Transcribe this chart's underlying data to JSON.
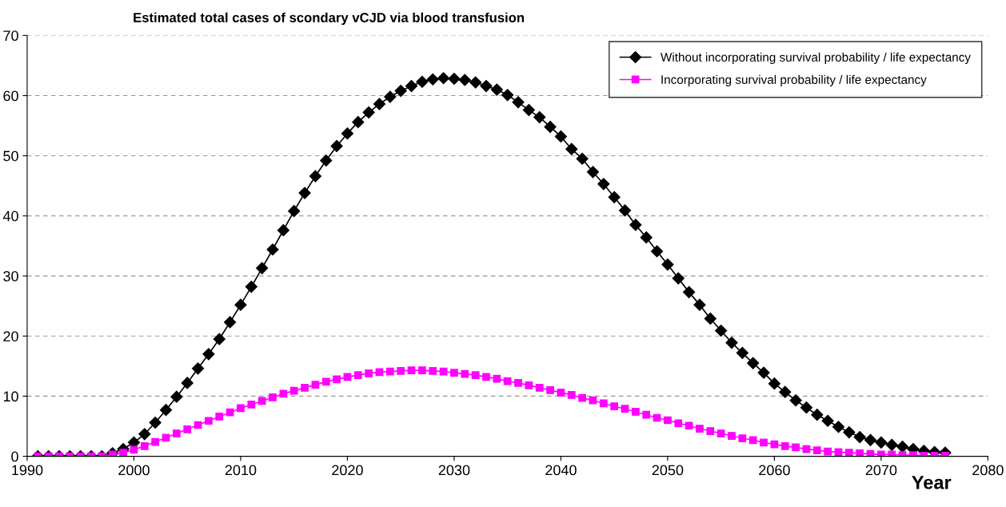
{
  "chart_data": {
    "type": "line",
    "title": "Estimated total cases of scondary vCJD via blood transfusion",
    "xlabel": "Year",
    "x": [
      1991,
      1992,
      1993,
      1994,
      1995,
      1996,
      1997,
      1998,
      1999,
      2000,
      2001,
      2002,
      2003,
      2004,
      2005,
      2006,
      2007,
      2008,
      2009,
      2010,
      2011,
      2012,
      2013,
      2014,
      2015,
      2016,
      2017,
      2018,
      2019,
      2020,
      2021,
      2022,
      2023,
      2024,
      2025,
      2026,
      2027,
      2028,
      2029,
      2030,
      2031,
      2032,
      2033,
      2034,
      2035,
      2036,
      2037,
      2038,
      2039,
      2040,
      2041,
      2042,
      2043,
      2044,
      2045,
      2046,
      2047,
      2048,
      2049,
      2050,
      2051,
      2052,
      2053,
      2054,
      2055,
      2056,
      2057,
      2058,
      2059,
      2060,
      2061,
      2062,
      2063,
      2064,
      2065,
      2066,
      2067,
      2068,
      2069,
      2070,
      2071,
      2072,
      2073,
      2074,
      2075,
      2076
    ],
    "series": [
      {
        "name": "Without incorporating survival probability / life expectancy",
        "color": "#000000",
        "marker": "diamond",
        "values": [
          0,
          0,
          0,
          0,
          0,
          0,
          0,
          0.5,
          1.2,
          2.3,
          3.7,
          5.6,
          7.7,
          9.9,
          12.2,
          14.6,
          17.0,
          19.5,
          22.3,
          25.2,
          28.2,
          31.3,
          34.4,
          37.6,
          40.8,
          43.8,
          46.6,
          49.2,
          51.6,
          53.7,
          55.6,
          57.2,
          58.6,
          59.8,
          60.8,
          61.6,
          62.3,
          62.7,
          62.9,
          62.8,
          62.6,
          62.2,
          61.6,
          61.0,
          60.1,
          58.9,
          57.6,
          56.4,
          54.8,
          53.2,
          51.1,
          49.5,
          47.3,
          45.3,
          43.1,
          40.9,
          38.5,
          36.4,
          34.1,
          31.9,
          29.6,
          27.3,
          25.2,
          22.9,
          20.9,
          18.9,
          17.2,
          15.5,
          13.9,
          12.1,
          10.7,
          9.3,
          8.1,
          6.9,
          5.9,
          4.9,
          4.0,
          3.2,
          2.7,
          2.3,
          1.9,
          1.6,
          1.2,
          0.9,
          0.7,
          0.6
        ]
      },
      {
        "name": "Incorporating survival probability / life expectancy",
        "color": "#ff00ff",
        "marker": "square",
        "values": [
          0,
          0,
          0,
          0,
          0,
          0,
          0,
          0.3,
          0.6,
          1.1,
          1.7,
          2.4,
          3.1,
          3.8,
          4.5,
          5.2,
          5.9,
          6.6,
          7.3,
          8.0,
          8.6,
          9.2,
          9.8,
          10.4,
          10.9,
          11.4,
          11.9,
          12.4,
          12.8,
          13.2,
          13.5,
          13.8,
          14.0,
          14.1,
          14.2,
          14.3,
          14.3,
          14.2,
          14.1,
          13.9,
          13.7,
          13.5,
          13.2,
          12.9,
          12.5,
          12.2,
          11.8,
          11.4,
          11.0,
          10.6,
          10.2,
          9.7,
          9.3,
          8.8,
          8.3,
          7.9,
          7.4,
          6.9,
          6.4,
          6.0,
          5.5,
          5.1,
          4.6,
          4.2,
          3.8,
          3.4,
          3.0,
          2.7,
          2.3,
          2.0,
          1.7,
          1.5,
          1.2,
          1.0,
          0.8,
          0.7,
          0.6,
          0.5,
          0.4,
          0.3,
          0.3,
          0.2,
          0.2,
          0.1,
          0.1,
          0.1
        ]
      }
    ],
    "xlim": [
      1990,
      2080
    ],
    "xticks": [
      1990,
      2000,
      2010,
      2020,
      2030,
      2040,
      2050,
      2060,
      2070,
      2080
    ],
    "ylim": [
      0,
      70
    ],
    "yticks": [
      0,
      10,
      20,
      30,
      40,
      50,
      60,
      70
    ],
    "grid": "y",
    "legend": "top right",
    "line_style": "solid"
  }
}
